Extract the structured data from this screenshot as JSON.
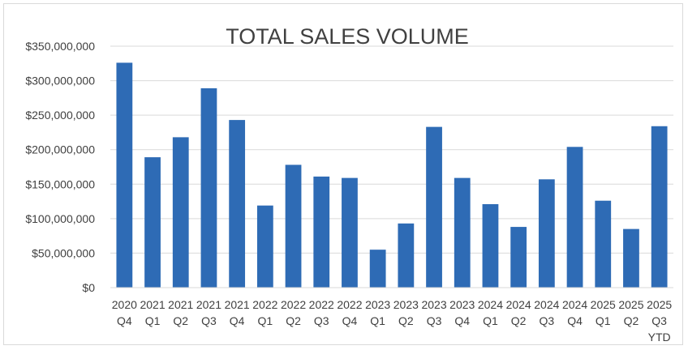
{
  "chart_data": {
    "type": "bar",
    "title": "TOTAL SALES VOLUME",
    "xlabel": "",
    "ylabel": "",
    "ylim": [
      0,
      350000000
    ],
    "yticks": [
      0,
      50000000,
      100000000,
      150000000,
      200000000,
      250000000,
      300000000,
      350000000
    ],
    "ytick_labels": [
      "$0",
      "$50,000,000",
      "$100,000,000",
      "$150,000,000",
      "$200,000,000",
      "$250,000,000",
      "$300,000,000",
      "$350,000,000"
    ],
    "grid": true,
    "legend": "none",
    "bar_color": "#2e6bb5",
    "gridline_color": "#d9d9d9",
    "categories": [
      [
        "2020",
        "Q4"
      ],
      [
        "2021",
        "Q1"
      ],
      [
        "2021",
        "Q2"
      ],
      [
        "2021",
        "Q3"
      ],
      [
        "2021",
        "Q4"
      ],
      [
        "2022",
        "Q1"
      ],
      [
        "2022",
        "Q2"
      ],
      [
        "2022",
        "Q3"
      ],
      [
        "2022",
        "Q4"
      ],
      [
        "2023",
        "Q1"
      ],
      [
        "2023",
        "Q2"
      ],
      [
        "2023",
        "Q3"
      ],
      [
        "2023",
        "Q4"
      ],
      [
        "2024",
        "Q1"
      ],
      [
        "2024",
        "Q2"
      ],
      [
        "2024",
        "Q3"
      ],
      [
        "2024",
        "Q4"
      ],
      [
        "2025",
        "Q1"
      ],
      [
        "2025",
        "Q2"
      ],
      [
        "2025",
        "Q3",
        "YTD"
      ]
    ],
    "values": [
      326000000,
      189000000,
      218000000,
      289000000,
      243000000,
      119000000,
      178000000,
      161000000,
      159000000,
      55000000,
      93000000,
      233000000,
      159000000,
      121000000,
      88000000,
      157000000,
      204000000,
      126000000,
      85000000,
      234000000
    ]
  }
}
